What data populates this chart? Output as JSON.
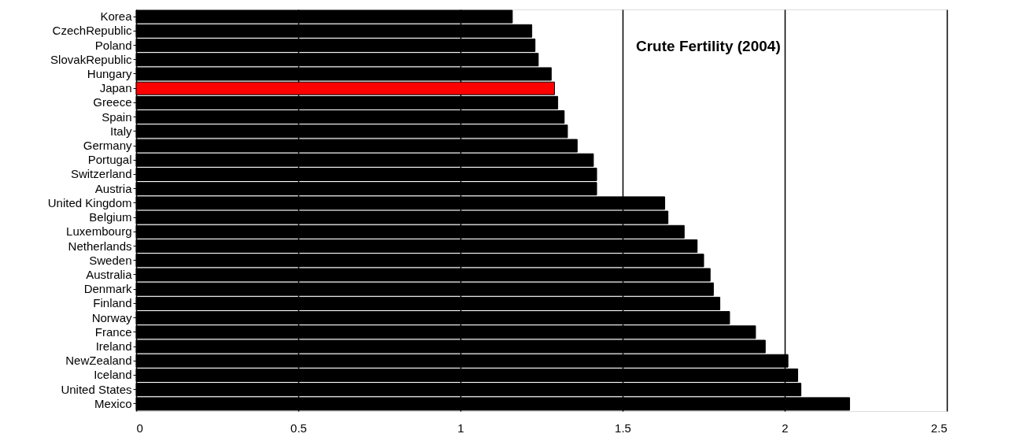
{
  "chart_data": {
    "type": "bar",
    "orientation": "horizontal",
    "title": "Crute Fertility (2004)",
    "categories": [
      "Korea",
      "CzechRepublic",
      "Poland",
      "SlovakRepublic",
      "Hungary",
      "Japan",
      "Greece",
      "Spain",
      "Italy",
      "Germany",
      "Portugal",
      "Switzerland",
      "Austria",
      "United Kingdom",
      "Belgium",
      "Luxembourg",
      "Netherlands",
      "Sweden",
      "Australia",
      "Denmark",
      "Finland",
      "Norway",
      "France",
      "Ireland",
      "NewZealand",
      "Iceland",
      "United States",
      "Mexico"
    ],
    "values": [
      1.16,
      1.22,
      1.23,
      1.24,
      1.28,
      1.29,
      1.3,
      1.32,
      1.33,
      1.36,
      1.41,
      1.42,
      1.42,
      1.63,
      1.64,
      1.69,
      1.73,
      1.75,
      1.77,
      1.78,
      1.8,
      1.83,
      1.91,
      1.94,
      2.01,
      2.04,
      2.05,
      2.2
    ],
    "colors": [
      "#000000",
      "#000000",
      "#000000",
      "#000000",
      "#000000",
      "#ff0000",
      "#000000",
      "#000000",
      "#000000",
      "#000000",
      "#000000",
      "#000000",
      "#000000",
      "#000000",
      "#000000",
      "#000000",
      "#000000",
      "#000000",
      "#000000",
      "#000000",
      "#000000",
      "#000000",
      "#000000",
      "#000000",
      "#000000",
      "#000000",
      "#000000",
      "#000000"
    ],
    "xlim": [
      0,
      2.5
    ],
    "xticks": [
      0,
      0.5,
      1,
      1.5,
      2,
      2.5
    ],
    "grid": "x",
    "legend": false
  }
}
